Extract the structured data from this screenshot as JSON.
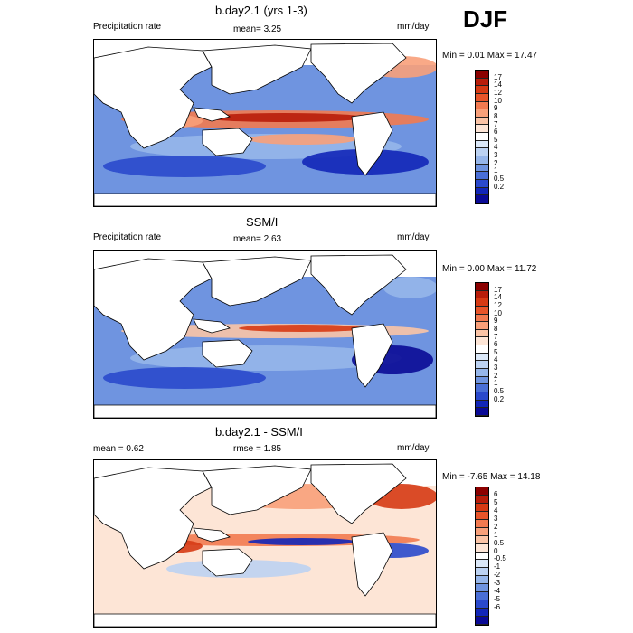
{
  "season": "DJF",
  "panels": [
    {
      "title": "b.day2.1 (yrs 1-3)",
      "left_label": "Precipitation rate",
      "center_label": "mean=  3.25",
      "units": "mm/day",
      "minmax": "Min =   0.01 Max =  17.47"
    },
    {
      "title": "SSM/I",
      "left_label": "Precipitation rate",
      "center_label": "mean=  2.63",
      "units": "mm/day",
      "minmax": "Min =   0.00 Max =  11.72"
    },
    {
      "title": "b.day2.1 - SSM/I",
      "left_label": "mean =  0.62",
      "center_label": "rmse =  1.85",
      "units": "mm/day",
      "minmax": "Min =  -7.65 Max =  14.18"
    }
  ],
  "precip_colorbar": {
    "labels": [
      "17",
      "14",
      "12",
      "10",
      "9",
      "8",
      "7",
      "6",
      "5",
      "4",
      "3",
      "2",
      "1",
      "0.5",
      "0.2"
    ],
    "colors": [
      "#8b0000",
      "#b81d0a",
      "#d63a14",
      "#e8552a",
      "#f27a50",
      "#f8a07a",
      "#fbc4a6",
      "#fde5d6",
      "#ffffff",
      "#dbe8f8",
      "#bcd2f2",
      "#96b6ea",
      "#6f94e0",
      "#4a6fd6",
      "#2a49cc",
      "#1226b8",
      "#0a0a96"
    ]
  },
  "diff_colorbar": {
    "labels": [
      "6",
      "5",
      "4",
      "3",
      "2",
      "1",
      "0.5",
      "0",
      "-0.5",
      "-1",
      "-2",
      "-3",
      "-4",
      "-5",
      "-6"
    ],
    "colors": [
      "#8b0000",
      "#b81d0a",
      "#d63a14",
      "#e8552a",
      "#f27a50",
      "#f8a07a",
      "#fbc4a6",
      "#fde5d6",
      "#ffffff",
      "#dbe8f8",
      "#bcd2f2",
      "#96b6ea",
      "#6f94e0",
      "#4a6fd6",
      "#2a49cc",
      "#1226b8",
      "#0a0a96"
    ]
  },
  "chart_data": [
    {
      "type": "heatmap",
      "title": "b.day2.1 (yrs 1-3)",
      "variable": "Precipitation rate",
      "units": "mm/day",
      "season": "DJF",
      "mean": 3.25,
      "min": 0.01,
      "max": 17.47,
      "contour_levels": [
        0.2,
        0.5,
        1,
        2,
        3,
        4,
        5,
        6,
        7,
        8,
        9,
        10,
        12,
        14,
        17
      ]
    },
    {
      "type": "heatmap",
      "title": "SSM/I",
      "variable": "Precipitation rate",
      "units": "mm/day",
      "season": "DJF",
      "mean": 2.63,
      "min": 0.0,
      "max": 11.72,
      "contour_levels": [
        0.2,
        0.5,
        1,
        2,
        3,
        4,
        5,
        6,
        7,
        8,
        9,
        10,
        12,
        14,
        17
      ]
    },
    {
      "type": "heatmap",
      "title": "b.day2.1 - SSM/I",
      "units": "mm/day",
      "season": "DJF",
      "mean": 0.62,
      "rmse": 1.85,
      "min": -7.65,
      "max": 14.18,
      "contour_levels": [
        -6,
        -5,
        -4,
        -3,
        -2,
        -1,
        -0.5,
        0,
        0.5,
        1,
        2,
        3,
        4,
        5,
        6
      ]
    }
  ]
}
